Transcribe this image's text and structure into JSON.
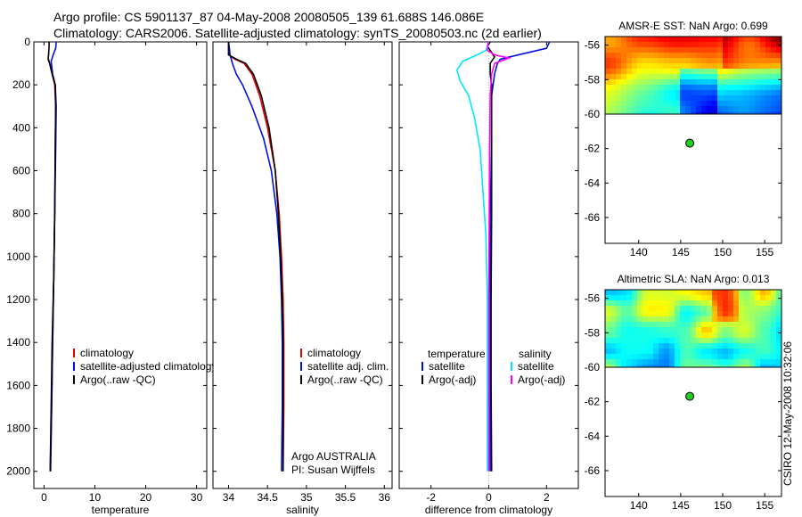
{
  "header": {
    "line1": "Argo profile: CS 5901137_87 04-May-2008 20080505_139 61.688S 146.086E",
    "line2": "Climatology: CARS2006. Satellite-adjusted climatology: synTS_20080503.nc (2d earlier)"
  },
  "side_label": "CSIRO 12-May-2008 10:32:06",
  "colors": {
    "climatology": "#e00000",
    "satellite": "#0010e0",
    "argo": "#000000",
    "satellite_sal": "#00e8ff",
    "argo_sal": "#ff00ff",
    "marker": "#22cc22"
  },
  "chart_data": [
    {
      "id": "temperature",
      "type": "line",
      "xlabel": "temperature",
      "xlim": [
        -2,
        32
      ],
      "ylim": [
        0,
        2080
      ],
      "xticks": [
        0,
        10,
        20,
        30
      ],
      "yticks": [
        0,
        200,
        400,
        600,
        800,
        1000,
        1200,
        1400,
        1600,
        1800,
        2000
      ],
      "legend": [
        "climatology",
        "satellite-adjusted climatology",
        "Argo(..raw -QC)"
      ],
      "series": [
        {
          "name": "climatology",
          "color": "#e00000",
          "points": [
            [
              0.9,
              80
            ],
            [
              1.1,
              100
            ],
            [
              1.6,
              150
            ],
            [
              2.1,
              200
            ],
            [
              2.3,
              300
            ],
            [
              2.2,
              500
            ],
            [
              2.1,
              800
            ],
            [
              1.9,
              1100
            ],
            [
              1.7,
              1400
            ],
            [
              1.5,
              1700
            ],
            [
              1.2,
              2000
            ]
          ]
        },
        {
          "name": "satellite-adjusted climatology",
          "color": "#0010e0",
          "points": [
            [
              2.4,
              0
            ],
            [
              2.3,
              30
            ],
            [
              1.8,
              60
            ],
            [
              1.4,
              90
            ],
            [
              1.7,
              150
            ],
            [
              2.2,
              200
            ],
            [
              2.4,
              300
            ],
            [
              2.3,
              500
            ],
            [
              2.1,
              800
            ],
            [
              1.9,
              1100
            ],
            [
              1.7,
              1400
            ],
            [
              1.5,
              1700
            ],
            [
              1.3,
              2000
            ]
          ]
        },
        {
          "name": "Argo(..raw -QC)",
          "color": "#000000",
          "points": [
            [
              1.0,
              0
            ],
            [
              1.0,
              20
            ],
            [
              0.9,
              60
            ],
            [
              0.8,
              80
            ],
            [
              1.1,
              100
            ],
            [
              1.6,
              150
            ],
            [
              2.2,
              200
            ],
            [
              2.3,
              300
            ],
            [
              2.2,
              500
            ],
            [
              2.1,
              800
            ],
            [
              1.9,
              1100
            ],
            [
              1.6,
              1400
            ],
            [
              1.4,
              1700
            ],
            [
              1.2,
              2000
            ]
          ]
        }
      ]
    },
    {
      "id": "salinity",
      "type": "line",
      "xlabel": "salinity",
      "xlim": [
        33.8,
        36.1
      ],
      "ylim": [
        0,
        2080
      ],
      "xticks": [
        34,
        34.5,
        35,
        35.5,
        36
      ],
      "legend": [
        "climatology",
        "satellite adj. clim.",
        "Argo(..raw -QC)"
      ],
      "annotation": [
        "Argo AUSTRALIA",
        "PI: Susan Wijffels"
      ],
      "series": [
        {
          "name": "climatology",
          "color": "#e00000",
          "points": [
            [
              34.0,
              0
            ],
            [
              34.0,
              60
            ],
            [
              34.08,
              80
            ],
            [
              34.2,
              100
            ],
            [
              34.3,
              150
            ],
            [
              34.4,
              250
            ],
            [
              34.5,
              400
            ],
            [
              34.6,
              600
            ],
            [
              34.65,
              800
            ],
            [
              34.68,
              1000
            ],
            [
              34.7,
              1200
            ],
            [
              34.71,
              1400
            ],
            [
              34.71,
              1700
            ],
            [
              34.7,
              2000
            ]
          ]
        },
        {
          "name": "satellite adj. clim.",
          "color": "#0010e0",
          "points": [
            [
              34.0,
              0
            ],
            [
              34.01,
              30
            ],
            [
              34.02,
              60
            ],
            [
              34.05,
              100
            ],
            [
              34.1,
              150
            ],
            [
              34.18,
              200
            ],
            [
              34.3,
              300
            ],
            [
              34.45,
              450
            ],
            [
              34.55,
              600
            ],
            [
              34.62,
              800
            ],
            [
              34.66,
              1000
            ],
            [
              34.68,
              1200
            ],
            [
              34.69,
              1400
            ],
            [
              34.69,
              1700
            ],
            [
              34.68,
              2000
            ]
          ]
        },
        {
          "name": "Argo(..raw -QC)",
          "color": "#000000",
          "points": [
            [
              34.0,
              0
            ],
            [
              34.0,
              60
            ],
            [
              34.1,
              80
            ],
            [
              34.22,
              100
            ],
            [
              34.32,
              150
            ],
            [
              34.42,
              250
            ],
            [
              34.52,
              400
            ],
            [
              34.6,
              600
            ],
            [
              34.64,
              800
            ],
            [
              34.67,
              1000
            ],
            [
              34.69,
              1200
            ],
            [
              34.7,
              1400
            ],
            [
              34.7,
              1700
            ],
            [
              34.7,
              2000
            ]
          ]
        }
      ]
    },
    {
      "id": "difference",
      "type": "line",
      "xlabel": "difference from climatology",
      "xlim": [
        -3.1,
        3.1
      ],
      "ylim": [
        0,
        2080
      ],
      "xticks": [
        -2,
        0,
        2
      ],
      "legend_title_temp": "temperature",
      "legend_title_sal": "salinity",
      "legend": [
        "satellite",
        "Argo(-adj)",
        "satellite",
        "Argo(-adj)"
      ],
      "series": [
        {
          "name": "temperature satellite",
          "color": "#0010e0",
          "points": [
            [
              2.1,
              0
            ],
            [
              2.0,
              30
            ],
            [
              1.2,
              55
            ],
            [
              0.4,
              80
            ],
            [
              0.3,
              100
            ],
            [
              0.2,
              150
            ],
            [
              0.1,
              250
            ],
            [
              0.1,
              500
            ],
            [
              0.05,
              800
            ],
            [
              0.05,
              1100
            ],
            [
              0.05,
              1400
            ],
            [
              0.05,
              1700
            ],
            [
              0.05,
              2000
            ]
          ]
        },
        {
          "name": "temperature Argo(-adj)",
          "color": "#000000",
          "points": [
            [
              0.05,
              0
            ],
            [
              -0.05,
              20
            ],
            [
              0.1,
              50
            ],
            [
              0.2,
              70
            ],
            [
              0.05,
              100
            ],
            [
              0.05,
              150
            ],
            [
              0.1,
              200
            ],
            [
              0.1,
              400
            ],
            [
              0.1,
              800
            ],
            [
              0.08,
              1200
            ],
            [
              0.08,
              1600
            ],
            [
              0.1,
              2000
            ]
          ]
        },
        {
          "name": "salinity satellite",
          "color": "#00e8ff",
          "points": [
            [
              0.0,
              0
            ],
            [
              -0.1,
              40
            ],
            [
              -0.4,
              60
            ],
            [
              -0.9,
              90
            ],
            [
              -1.1,
              130
            ],
            [
              -1.0,
              180
            ],
            [
              -0.7,
              250
            ],
            [
              -0.5,
              350
            ],
            [
              -0.3,
              500
            ],
            [
              -0.2,
              700
            ],
            [
              -0.1,
              900
            ],
            [
              -0.05,
              1200
            ],
            [
              -0.05,
              1500
            ],
            [
              -0.05,
              2000
            ]
          ]
        },
        {
          "name": "salinity Argo(-adj)",
          "color": "#ff00ff",
          "points": [
            [
              -0.02,
              0
            ],
            [
              -0.05,
              40
            ],
            [
              0.2,
              60
            ],
            [
              0.7,
              75
            ],
            [
              0.5,
              85
            ],
            [
              0.2,
              100
            ],
            [
              0.1,
              150
            ],
            [
              0.05,
              250
            ],
            [
              0.03,
              500
            ],
            [
              0.02,
              800
            ],
            [
              0.0,
              1200
            ],
            [
              0.0,
              1600
            ],
            [
              0.0,
              2000
            ]
          ]
        }
      ]
    },
    {
      "id": "sst_map",
      "type": "heatmap",
      "title": "AMSR-E SST: NaN Argo: 0.699",
      "xlim": [
        136,
        157
      ],
      "ylim": [
        -67.5,
        -55.5
      ],
      "xticks": [
        140,
        145,
        150,
        155
      ],
      "yticks": [
        -56,
        -58,
        -60,
        -62,
        -64,
        -66
      ],
      "field_ylim": [
        -60,
        -55.5
      ],
      "marker": [
        146.086,
        -61.688
      ]
    },
    {
      "id": "sla_map",
      "type": "heatmap",
      "title": "Altimetric SLA: NaN Argo: 0.013",
      "xlim": [
        136,
        157
      ],
      "ylim": [
        -67.5,
        -55.5
      ],
      "xticks": [
        140,
        145,
        150,
        155
      ],
      "yticks": [
        -56,
        -58,
        -60,
        -62,
        -64,
        -66
      ],
      "field_ylim": [
        -60,
        -55.5
      ],
      "marker": [
        146.086,
        -61.688
      ]
    }
  ]
}
